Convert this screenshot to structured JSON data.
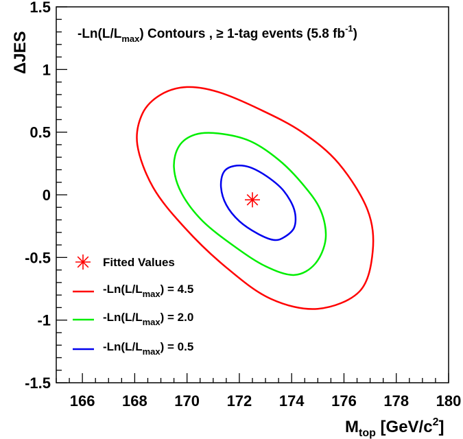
{
  "chart_data": {
    "type": "line",
    "title": {
      "main": "-Ln(L/L",
      "main_sub": "max",
      "rest": ") Contours , ≥ 1-tag events (5.8 fb",
      "sup": "-1",
      "end": ")"
    },
    "xlabel": {
      "main": "M",
      "sub": "top",
      "rest": " [GeV/c",
      "sup": "2",
      "end": "]"
    },
    "ylabel": "ΔJES",
    "xlim": [
      165,
      180
    ],
    "ylim": [
      -1.5,
      1.5
    ],
    "x_ticks": [
      166,
      168,
      170,
      172,
      174,
      176,
      178,
      180
    ],
    "x_tick_labels": [
      "166",
      "168",
      "170",
      "172",
      "174",
      "176",
      "178",
      "180"
    ],
    "y_ticks": [
      -1.5,
      -1,
      -0.5,
      0,
      0.5,
      1,
      1.5
    ],
    "y_tick_labels": [
      "-1.5",
      "-1",
      "-0.5",
      "0",
      "0.5",
      "1",
      "1.5"
    ],
    "grid": false,
    "legend_position": "bottom-left",
    "fitted_value": {
      "x": 172.5,
      "y": -0.04,
      "color": "#ff0000",
      "label": "Fitted Values"
    },
    "series": [
      {
        "name": "-Ln(L/Lmax) = 4.5",
        "label_main": "-Ln(L/L",
        "label_sub": "max",
        "label_rest": ") = 4.5",
        "color": "#ff0000",
        "closed": true,
        "x": [
          170.0,
          171.2,
          172.8,
          174.4,
          175.8,
          176.9,
          177.1,
          176.6,
          175.0,
          173.2,
          171.5,
          169.9,
          168.7,
          168.1,
          168.3,
          169.0,
          170.0
        ],
        "y": [
          0.86,
          0.82,
          0.68,
          0.5,
          0.25,
          -0.12,
          -0.45,
          -0.77,
          -0.91,
          -0.83,
          -0.58,
          -0.26,
          0.06,
          0.4,
          0.65,
          0.8,
          0.86
        ]
      },
      {
        "name": "-Ln(L/Lmax) = 2.0",
        "label_main": "-Ln(L/L",
        "label_sub": "max",
        "label_rest": ") = 2.0",
        "color": "#00ee00",
        "closed": true,
        "x": [
          171.2,
          172.4,
          173.5,
          174.4,
          175.1,
          175.3,
          174.9,
          174.1,
          173.0,
          171.8,
          170.6,
          169.8,
          169.5,
          169.7,
          170.3,
          171.2
        ],
        "y": [
          0.49,
          0.43,
          0.28,
          0.09,
          -0.12,
          -0.35,
          -0.55,
          -0.64,
          -0.57,
          -0.41,
          -0.21,
          0.01,
          0.22,
          0.39,
          0.48,
          0.49
        ]
      },
      {
        "name": "-Ln(L/Lmax) = 0.5",
        "label_main": "-Ln(L/L",
        "label_sub": "max",
        "label_rest": ") = 0.5",
        "color": "#0000ee",
        "closed": true,
        "x": [
          171.8,
          172.4,
          173.1,
          173.7,
          174.1,
          174.1,
          173.7,
          173.3,
          172.7,
          172.0,
          171.5,
          171.3,
          171.4,
          171.8
        ],
        "y": [
          0.23,
          0.22,
          0.14,
          0.03,
          -0.12,
          -0.26,
          -0.34,
          -0.36,
          -0.31,
          -0.21,
          -0.08,
          0.06,
          0.18,
          0.23
        ]
      }
    ]
  }
}
